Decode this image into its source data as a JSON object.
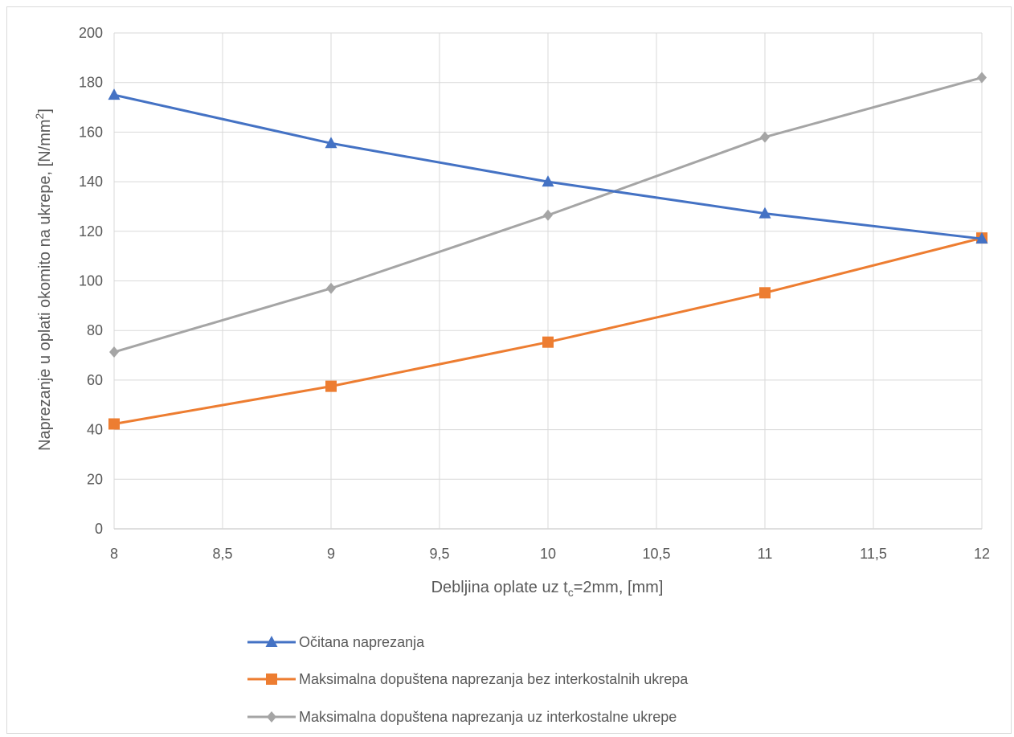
{
  "chart_data": {
    "type": "line",
    "title": "",
    "xlabel": {
      "main": "Debljina oplate uz t",
      "sub": "c",
      "rest": "=2mm, [mm]"
    },
    "ylabel": {
      "main": "Naprezanje u oplati okomito na ukrepe, [N/mm",
      "sup": "2",
      "rest": "]"
    },
    "x": [
      8,
      9,
      10,
      11,
      12
    ],
    "xlim": [
      8,
      12
    ],
    "ylim": [
      0,
      200
    ],
    "x_ticks": [
      "8",
      "8,5",
      "9",
      "9,5",
      "10",
      "10,5",
      "11",
      "11,5",
      "12"
    ],
    "y_ticks": [
      "0",
      "20",
      "40",
      "60",
      "80",
      "100",
      "120",
      "140",
      "160",
      "180",
      "200"
    ],
    "grid": true,
    "legend_position": "bottom",
    "series": [
      {
        "name": "Očitana naprezanja",
        "values": [
          175,
          155.5,
          140,
          127.2,
          117
        ],
        "color": "#4472c4",
        "marker": "triangle"
      },
      {
        "name": "Maksimalna dopuštena naprezanja bez interkostalnih ukrepa",
        "values": [
          42.3,
          57.5,
          75.3,
          95.2,
          117.3
        ],
        "color": "#ed7d31",
        "marker": "square"
      },
      {
        "name": "Maksimalna dopuštena naprezanja uz interkostalne ukrepe",
        "values": [
          71.3,
          97,
          126.5,
          158,
          182
        ],
        "color": "#a5a5a5",
        "marker": "diamond"
      }
    ]
  }
}
